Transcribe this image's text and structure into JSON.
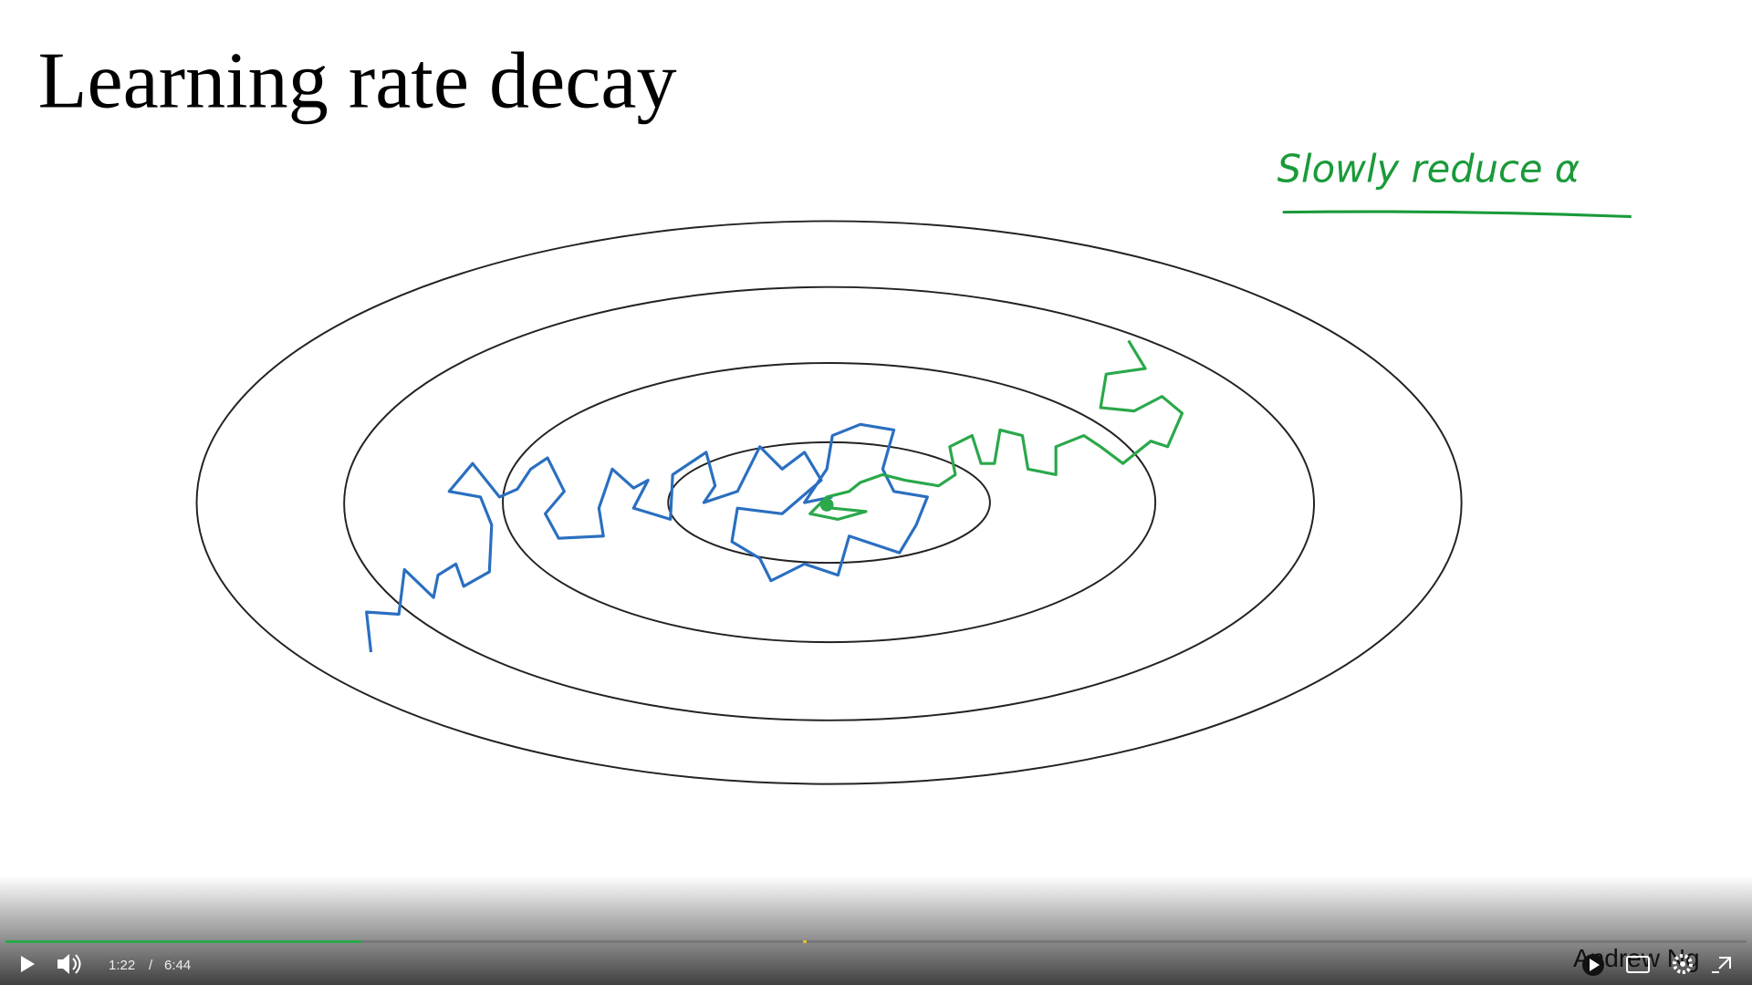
{
  "slide": {
    "title": "Learning rate decay",
    "annotation": "Slowly reduce α",
    "footer": "Andrew Ng"
  },
  "player": {
    "current_time": "1:22",
    "separator": "/",
    "duration": "6:44"
  }
}
